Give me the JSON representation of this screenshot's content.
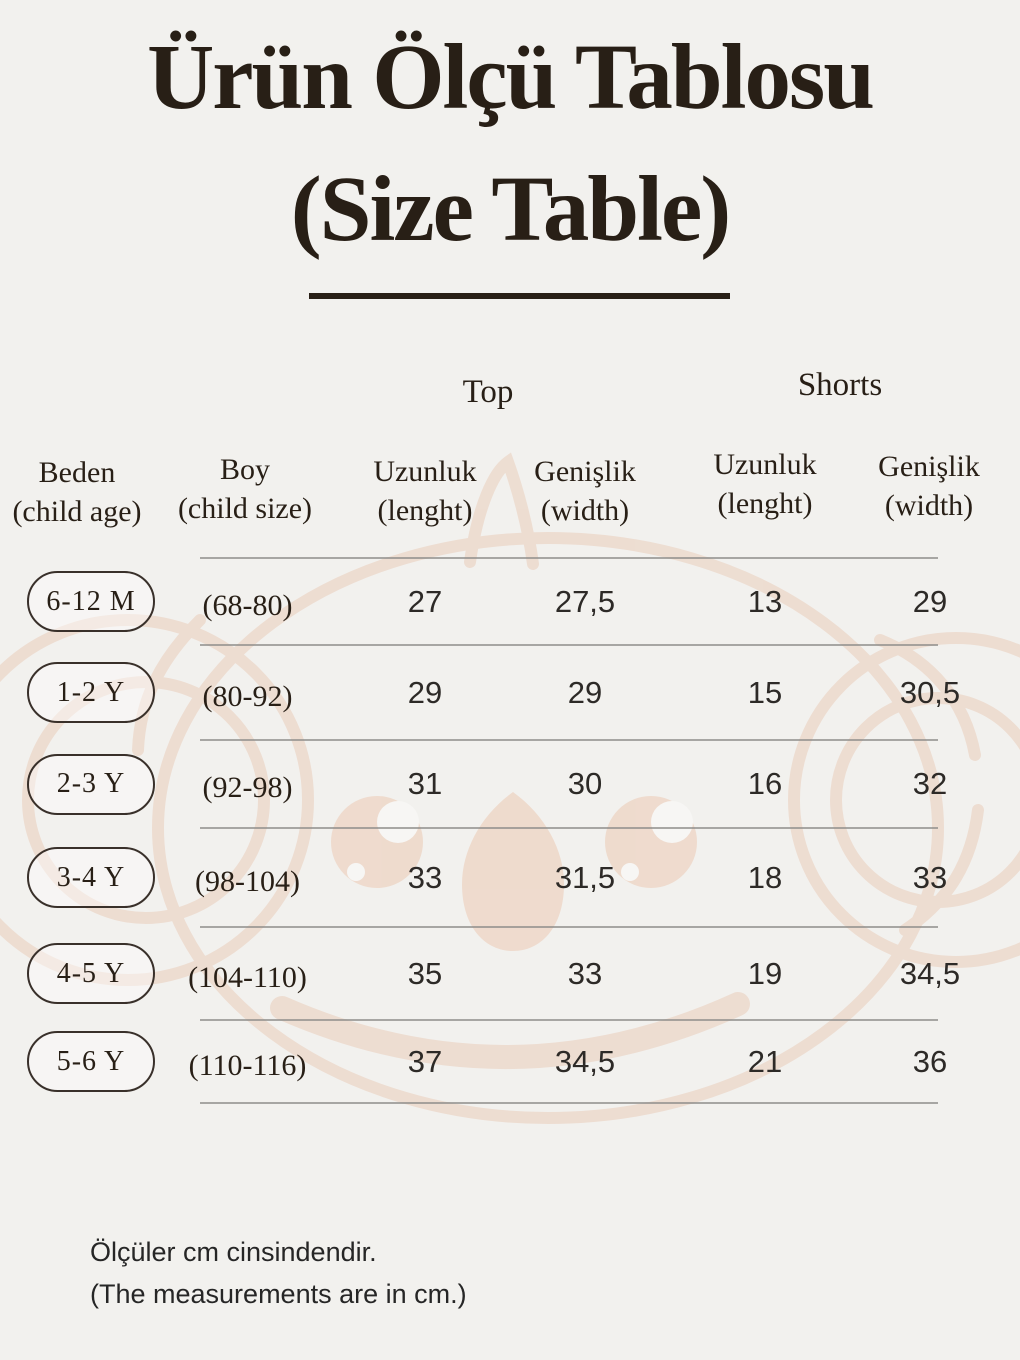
{
  "title": {
    "line1": "Ürün Ölçü Tablosu",
    "line2": "(Size Table)"
  },
  "groups": {
    "top": "Top",
    "shorts": "Shorts"
  },
  "columns": [
    {
      "label": "Beden",
      "sub": "(child age)"
    },
    {
      "label": "Boy",
      "sub": "(child size)"
    },
    {
      "label": "Uzunluk",
      "sub": "(lenght)"
    },
    {
      "label": "Genişlik",
      "sub": "(width)"
    },
    {
      "label": "Uzunluk",
      "sub": "(lenght)"
    },
    {
      "label": "Genişlik",
      "sub": "(width)"
    }
  ],
  "rows": [
    {
      "beden": "6-12 M",
      "boy": "(68-80)",
      "top_uzunluk": "27",
      "top_genislik": "27,5",
      "shorts_uzunluk": "13",
      "shorts_genislik": "29"
    },
    {
      "beden": "1-2 Y",
      "boy": "(80-92)",
      "top_uzunluk": "29",
      "top_genislik": "29",
      "shorts_uzunluk": "15",
      "shorts_genislik": "30,5"
    },
    {
      "beden": "2-3 Y",
      "boy": "(92-98)",
      "top_uzunluk": "31",
      "top_genislik": "30",
      "shorts_uzunluk": "16",
      "shorts_genislik": "32"
    },
    {
      "beden": "3-4 Y",
      "boy": "(98-104)",
      "top_uzunluk": "33",
      "top_genislik": "31,5",
      "shorts_uzunluk": "18",
      "shorts_genislik": "33"
    },
    {
      "beden": "4-5 Y",
      "boy": "(104-110)",
      "top_uzunluk": "35",
      "top_genislik": "33",
      "shorts_uzunluk": "19",
      "shorts_genislik": "34,5"
    },
    {
      "beden": "5-6 Y",
      "boy": "(110-116)",
      "top_uzunluk": "37",
      "top_genislik": "34,5",
      "shorts_uzunluk": "21",
      "shorts_genislik": "36"
    }
  ],
  "footer": {
    "line1": "Ölçüler cm cinsindendir.",
    "line2": "(The measurements are in cm.)"
  },
  "unit": "cm",
  "colors": {
    "background": "#f2f1ee",
    "text": "#281f16",
    "table_line": "#8e8c8a",
    "watermark": "#eacdbb"
  }
}
